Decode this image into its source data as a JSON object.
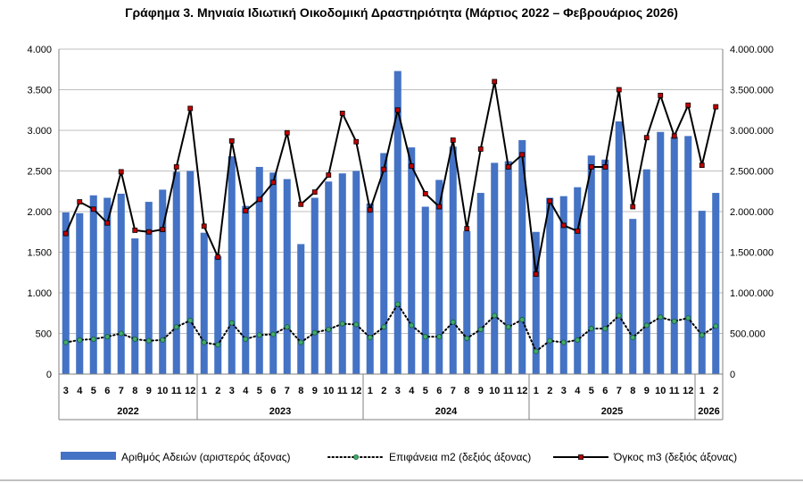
{
  "title": "Γράφημα 3. Μηνιαία Ιδιωτική Οικοδομική Δραστηριότητα (Μάρτιος 2022 – Φεβρουάριος 2026)",
  "chart_data": {
    "type": "bar",
    "title": "Γράφημα 3. Μηνιαία Ιδιωτική Οικοδομική Δραστηριότητα (Μάρτιος 2022 – Φεβρουάριος 2026)",
    "categories": [
      "3",
      "4",
      "5",
      "6",
      "7",
      "8",
      "9",
      "10",
      "11",
      "12",
      "1",
      "2",
      "3",
      "4",
      "5",
      "6",
      "7",
      "8",
      "9",
      "10",
      "11",
      "12",
      "1",
      "2",
      "3",
      "4",
      "5",
      "6",
      "7",
      "8",
      "9",
      "10",
      "11",
      "12",
      "1",
      "2",
      "3",
      "4",
      "5",
      "6",
      "7",
      "8",
      "9",
      "10",
      "11",
      "12",
      "1",
      "2"
    ],
    "years": [
      {
        "label": "2022",
        "start": 0,
        "end": 9
      },
      {
        "label": "2023",
        "start": 10,
        "end": 21
      },
      {
        "label": "2024",
        "start": 22,
        "end": 33
      },
      {
        "label": "2025",
        "start": 34,
        "end": 45
      },
      {
        "label": "2026",
        "start": 46,
        "end": 47
      }
    ],
    "left_axis": {
      "ylim": [
        0,
        4000
      ],
      "ticks": [
        0,
        500,
        1000,
        1500,
        2000,
        2500,
        3000,
        3500,
        4000
      ],
      "tick_labels": [
        "0",
        "500",
        "1.000",
        "1.500",
        "2.000",
        "2.500",
        "3.000",
        "3.500",
        "4.000"
      ]
    },
    "right_axis": {
      "ylim": [
        0,
        4000000
      ],
      "ticks": [
        0,
        500000,
        1000000,
        1500000,
        2000000,
        2500000,
        3000000,
        3500000,
        4000000
      ],
      "tick_labels": [
        "0",
        "500.000",
        "1.000.000",
        "1.500.000",
        "2.000.000",
        "2.500.000",
        "3.000.000",
        "3.500.000",
        "4.000.000"
      ]
    },
    "grid": true,
    "legend_position": "bottom",
    "series": [
      {
        "name": "Αριθμός Αδειών (αριστερός άξονας)",
        "type": "bar",
        "axis": "left",
        "color": "#4472C4",
        "values": [
          1990,
          1980,
          2200,
          2170,
          2220,
          1670,
          2120,
          2270,
          2490,
          2500,
          1740,
          1450,
          2680,
          2070,
          2550,
          2480,
          2400,
          1600,
          2170,
          2370,
          2470,
          2500,
          2100,
          2720,
          3730,
          2790,
          2060,
          2390,
          2800,
          1760,
          2230,
          2600,
          2620,
          2880,
          1750,
          2170,
          2190,
          2300,
          2690,
          2640,
          3110,
          1910,
          2520,
          2980,
          2920,
          2930,
          2010,
          2230
        ]
      },
      {
        "name": "Επιφάνεια m2 (δεξιός άξονας)",
        "type": "line",
        "axis": "right",
        "color": "#1e5c3a",
        "style": "dotted",
        "values": [
          390000,
          420000,
          430000,
          460000,
          500000,
          430000,
          410000,
          420000,
          580000,
          660000,
          390000,
          360000,
          630000,
          430000,
          480000,
          490000,
          580000,
          390000,
          510000,
          550000,
          620000,
          610000,
          450000,
          580000,
          860000,
          600000,
          460000,
          460000,
          640000,
          440000,
          550000,
          720000,
          580000,
          670000,
          280000,
          410000,
          390000,
          420000,
          560000,
          560000,
          720000,
          450000,
          600000,
          700000,
          650000,
          690000,
          480000,
          590000
        ]
      },
      {
        "name": "Όγκος m3 (δεξιός άξονας)",
        "type": "line",
        "axis": "right",
        "color": "#000000",
        "marker_color": "#c00000",
        "values": [
          1730000,
          2120000,
          2030000,
          1860000,
          2490000,
          1770000,
          1750000,
          1780000,
          2550000,
          3270000,
          1820000,
          1440000,
          2870000,
          2010000,
          2150000,
          2360000,
          2970000,
          2090000,
          2240000,
          2450000,
          3210000,
          2860000,
          2020000,
          2520000,
          3250000,
          2560000,
          2220000,
          2060000,
          2880000,
          1790000,
          2770000,
          3600000,
          2550000,
          2700000,
          1230000,
          2130000,
          1830000,
          1760000,
          2550000,
          2550000,
          3500000,
          2060000,
          2910000,
          3430000,
          2930000,
          3310000,
          2570000,
          3290000
        ]
      }
    ]
  }
}
